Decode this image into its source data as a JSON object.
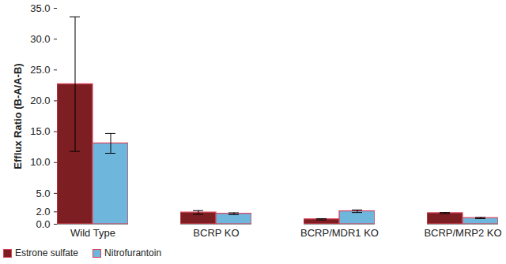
{
  "chart_data": {
    "type": "bar",
    "y_label": "Efflux Ratio (B-A/A-B)",
    "categories": [
      "Wild Type",
      "BCRP KO",
      "BCRP/MDR1 KO",
      "BCRP/MRP2 KO"
    ],
    "series": [
      {
        "name": "Estrone sulfate",
        "color": "#7d1f22",
        "values": [
          22.7,
          1.9,
          0.8,
          1.8
        ],
        "errors": [
          10.9,
          0.3,
          0.1,
          0.1
        ]
      },
      {
        "name": "Nitrofurantoin",
        "color": "#6fb6dd",
        "values": [
          13.1,
          1.7,
          2.1,
          1.0
        ],
        "errors": [
          1.6,
          0.15,
          0.2,
          0.1
        ]
      }
    ],
    "ylim": [
      0,
      35
    ],
    "yticks": [
      {
        "value": 0,
        "label": "0.0"
      },
      {
        "value": 2,
        "label": "2.0"
      },
      {
        "value": 5,
        "label": "5.0"
      },
      {
        "value": 10,
        "label": "10.0"
      },
      {
        "value": 15,
        "label": "15.0"
      },
      {
        "value": 20,
        "label": "20.0"
      },
      {
        "value": 25,
        "label": "25.0"
      },
      {
        "value": 30,
        "label": "30.0"
      },
      {
        "value": 35,
        "label": "35.0"
      }
    ],
    "grid": false,
    "legend": "bottom-left"
  }
}
